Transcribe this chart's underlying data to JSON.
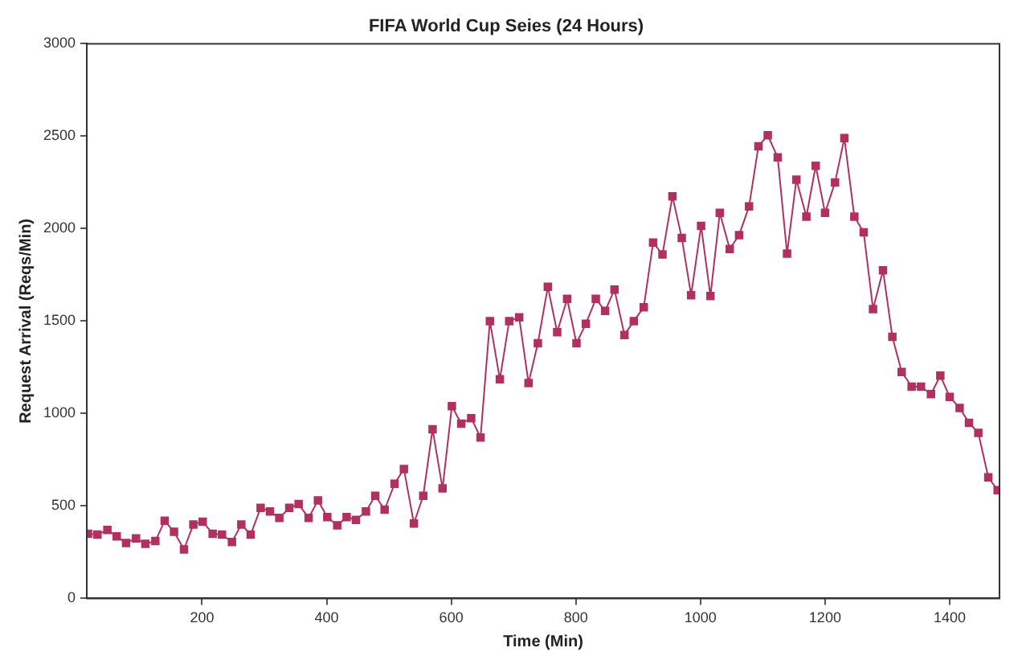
{
  "chart_data": {
    "type": "line",
    "title": "FIFA World Cup Seies (24 Hours)",
    "xlabel": "Time (Min)",
    "ylabel": "Request Arrival (Reqs/Min)",
    "x": [
      17,
      32,
      48,
      63,
      78,
      94,
      109,
      125,
      140,
      155,
      171,
      186,
      201,
      217,
      232,
      248,
      263,
      278,
      294,
      309,
      324,
      340,
      355,
      371,
      386,
      401,
      417,
      432,
      447,
      463,
      478,
      493,
      509,
      524,
      540,
      555,
      570,
      586,
      601,
      616,
      632,
      647,
      662,
      678,
      693,
      709,
      724,
      739,
      755,
      770,
      786,
      801,
      816,
      832,
      847,
      862,
      878,
      893,
      909,
      924,
      939,
      955,
      970,
      985,
      1001,
      1016,
      1031,
      1047,
      1062,
      1078,
      1093,
      1108,
      1124,
      1139,
      1154,
      1170,
      1185,
      1200,
      1216,
      1231,
      1247,
      1262,
      1277,
      1293,
      1308,
      1323,
      1339,
      1354,
      1370,
      1385,
      1400,
      1416,
      1431,
      1446,
      1462,
      1477
    ],
    "series": [
      {
        "color": "#b03060",
        "values": [
          350,
          345,
          370,
          335,
          300,
          325,
          295,
          310,
          420,
          360,
          265,
          400,
          415,
          350,
          345,
          305,
          400,
          345,
          490,
          470,
          435,
          490,
          510,
          435,
          530,
          440,
          395,
          440,
          425,
          470,
          555,
          480,
          620,
          700,
          405,
          555,
          915,
          595,
          1040,
          945,
          975,
          870,
          1500,
          1185,
          1500,
          1520,
          1165,
          1380,
          1685,
          1440,
          1620,
          1380,
          1485,
          1620,
          1555,
          1670,
          1425,
          1500,
          1575,
          1925,
          1860,
          2175,
          1950,
          1640,
          2015,
          1635,
          2085,
          1890,
          1965,
          2120,
          2445,
          2505,
          2385,
          1865,
          2265,
          2065,
          2340,
          2085,
          2250,
          2490,
          2065,
          1980,
          1565,
          1775,
          1415,
          1225,
          1145,
          1145,
          1105,
          1205,
          1090,
          1030,
          950,
          895,
          655,
          585
        ]
      }
    ],
    "xlim": [
      15,
      1480
    ],
    "ylim": [
      0,
      3000
    ],
    "xticks": [
      200,
      400,
      600,
      800,
      1000,
      1200,
      1400
    ],
    "yticks": [
      0,
      500,
      1000,
      1500,
      2000,
      2500,
      3000
    ],
    "grid": false,
    "legend": false,
    "marker": "square",
    "line_style": "solid"
  }
}
